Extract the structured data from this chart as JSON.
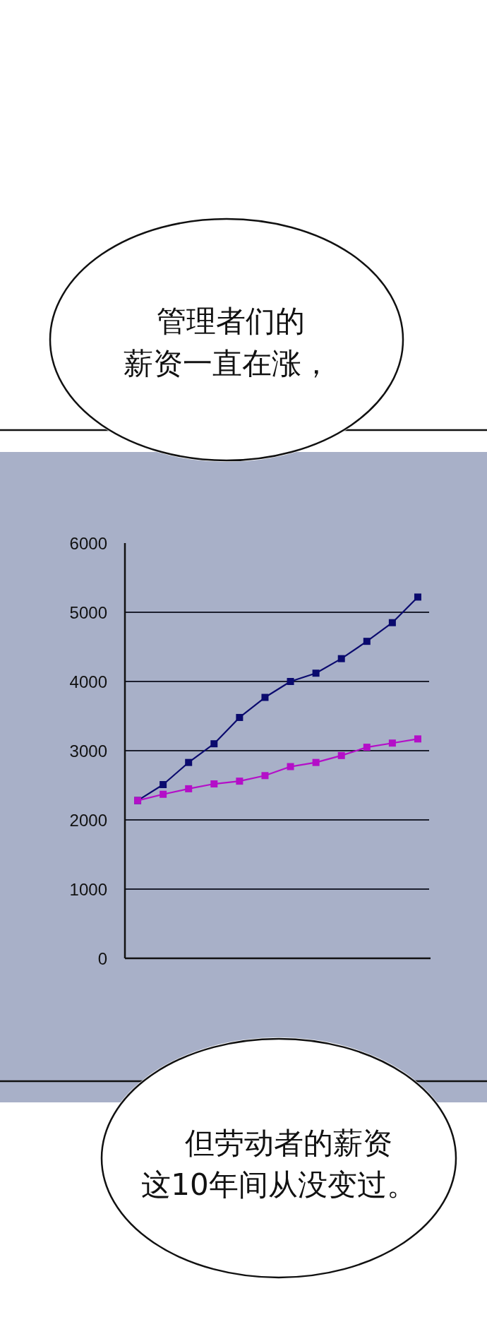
{
  "chart_data": {
    "type": "line",
    "categories": [
      null,
      null,
      null,
      null,
      null,
      null,
      null,
      null,
      null,
      null,
      null,
      null
    ],
    "series": [
      {
        "color": "#0a0a6e",
        "values": [
          2280,
          2510,
          2830,
          3100,
          3480,
          3770,
          4000,
          4120,
          4330,
          4580,
          4850,
          5220
        ]
      },
      {
        "color": "#b40fc8",
        "values": [
          2280,
          2370,
          2450,
          2520,
          2560,
          2640,
          2770,
          2830,
          2930,
          3050,
          3110,
          3170
        ]
      }
    ],
    "ylim": [
      0,
      6000
    ],
    "yticks": [
      0,
      1000,
      2000,
      3000,
      4000,
      5000,
      6000
    ],
    "grid": "y",
    "marker": "square",
    "line_style": "solid",
    "annotations": [
      "管理者们的",
      "薪资一直在涨，",
      "但劳动者的薪资",
      "这10年间从没变过。"
    ]
  }
}
